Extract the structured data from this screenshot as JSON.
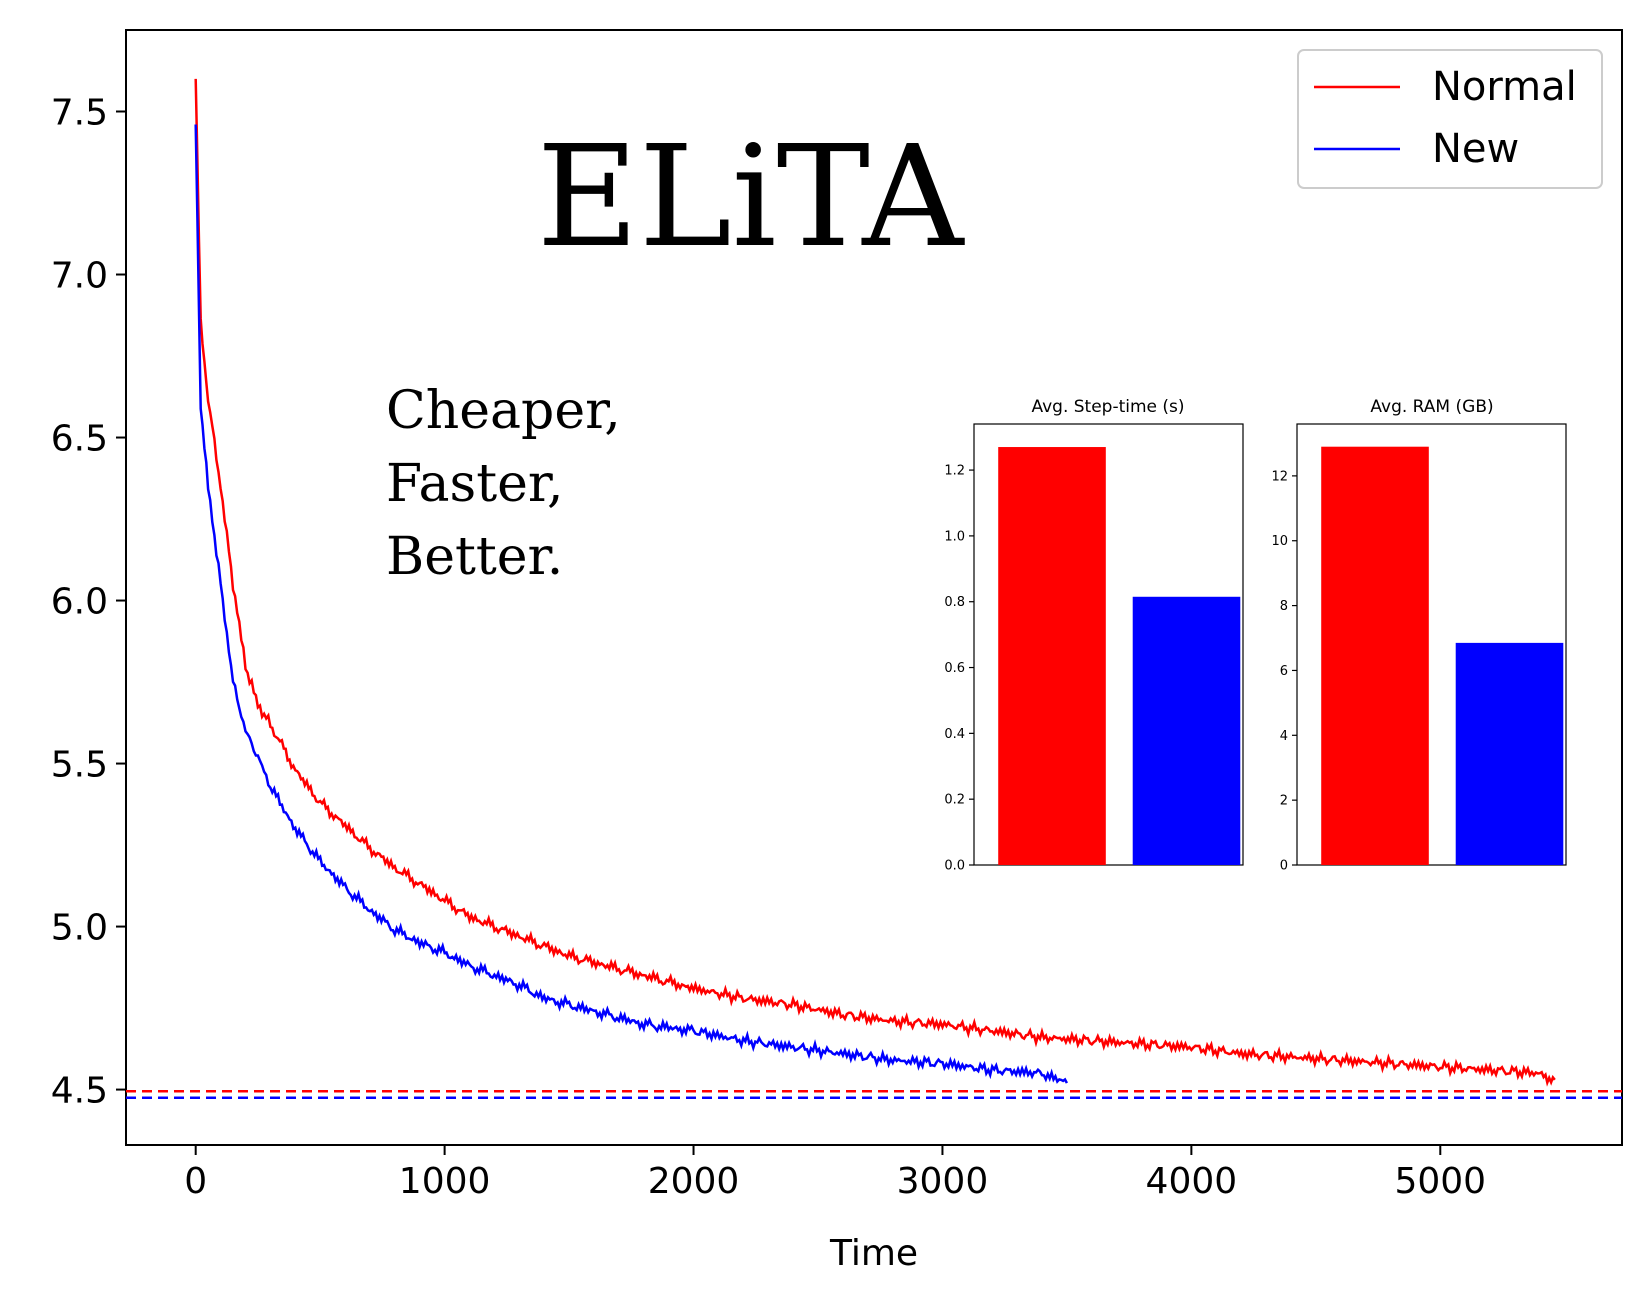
{
  "figure": {
    "headline": "ELiTA",
    "tagline": [
      "Cheaper,",
      "Faster,",
      "Better."
    ]
  },
  "chart_data": [
    {
      "type": "line",
      "xlabel": "Time",
      "ylabel": "",
      "xlim": [
        -280,
        5730
      ],
      "ylim": [
        4.33,
        7.75
      ],
      "xticks": [
        0,
        1000,
        2000,
        3000,
        4000,
        5000
      ],
      "xtick_labels": [
        "0",
        "1000",
        "2000",
        "3000",
        "4000",
        "5000"
      ],
      "yticks": [
        4.5,
        5.0,
        5.5,
        6.0,
        6.5,
        7.0,
        7.5
      ],
      "ytick_labels": [
        "4.5",
        "5.0",
        "5.5",
        "6.0",
        "6.5",
        "7.0",
        "7.5"
      ],
      "legend": {
        "placement": "top-right",
        "entries": [
          "Normal",
          "New"
        ]
      },
      "grid": false,
      "series": [
        {
          "name": "Normal",
          "color": "#ff0000",
          "style": "solid",
          "x": [
            0,
            20,
            50,
            100,
            150,
            200,
            250,
            300,
            400,
            500,
            600,
            700,
            800,
            900,
            1000,
            1100,
            1200,
            1300,
            1400,
            1500,
            1600,
            1700,
            1800,
            1900,
            2000,
            2200,
            2400,
            2600,
            2800,
            3000,
            3200,
            3400,
            3600,
            3800,
            4000,
            4200,
            4400,
            4600,
            4800,
            5000,
            5200,
            5400,
            5460
          ],
          "y": [
            7.6,
            6.85,
            6.62,
            6.35,
            6.05,
            5.8,
            5.68,
            5.62,
            5.48,
            5.38,
            5.31,
            5.24,
            5.18,
            5.13,
            5.08,
            5.03,
            5.0,
            4.97,
            4.94,
            4.91,
            4.89,
            4.87,
            4.85,
            4.83,
            4.81,
            4.78,
            4.76,
            4.73,
            4.71,
            4.7,
            4.68,
            4.66,
            4.65,
            4.64,
            4.63,
            4.61,
            4.6,
            4.59,
            4.58,
            4.57,
            4.56,
            4.55,
            4.53
          ]
        },
        {
          "name": "New",
          "color": "#0000ff",
          "style": "solid",
          "x": [
            0,
            20,
            50,
            100,
            150,
            200,
            250,
            300,
            400,
            500,
            600,
            700,
            800,
            900,
            1000,
            1100,
            1200,
            1300,
            1400,
            1500,
            1600,
            1700,
            1800,
            1900,
            2000,
            2200,
            2400,
            2600,
            2800,
            3000,
            3200,
            3400,
            3500
          ],
          "y": [
            7.46,
            6.6,
            6.35,
            6.05,
            5.75,
            5.6,
            5.52,
            5.43,
            5.3,
            5.2,
            5.12,
            5.05,
            4.99,
            4.95,
            4.92,
            4.88,
            4.85,
            4.82,
            4.78,
            4.76,
            4.74,
            4.72,
            4.7,
            4.69,
            4.68,
            4.65,
            4.63,
            4.61,
            4.59,
            4.58,
            4.56,
            4.55,
            4.52
          ]
        },
        {
          "name": "",
          "color": "#ff0000",
          "style": "dashed",
          "x": [
            -280,
            5730
          ],
          "y": [
            4.495,
            4.495
          ]
        },
        {
          "name": "",
          "color": "#0000ff",
          "style": "dashed",
          "x": [
            -280,
            5730
          ],
          "y": [
            4.475,
            4.475
          ]
        }
      ]
    },
    {
      "type": "bar",
      "title": "Avg. Step-time (s)",
      "categories": [
        "Normal",
        "New"
      ],
      "values": [
        1.27,
        0.815
      ],
      "colors": [
        "#ff0000",
        "#0000ff"
      ],
      "ylim": [
        0,
        1.34
      ],
      "yticks": [
        0.0,
        0.2,
        0.4,
        0.6,
        0.8,
        1.0,
        1.2
      ],
      "ytick_labels": [
        "0.0",
        "0.2",
        "0.4",
        "0.6",
        "0.8",
        "1.0",
        "1.2"
      ],
      "xlabel": "",
      "ylabel": ""
    },
    {
      "type": "bar",
      "title": "Avg. RAM (GB)",
      "categories": [
        "Normal",
        "New"
      ],
      "values": [
        12.9,
        6.85
      ],
      "colors": [
        "#ff0000",
        "#0000ff"
      ],
      "ylim": [
        0,
        13.6
      ],
      "yticks": [
        0,
        2,
        4,
        6,
        8,
        10,
        12
      ],
      "ytick_labels": [
        "0",
        "2",
        "4",
        "6",
        "8",
        "10",
        "12"
      ],
      "xlabel": "",
      "ylabel": ""
    }
  ]
}
